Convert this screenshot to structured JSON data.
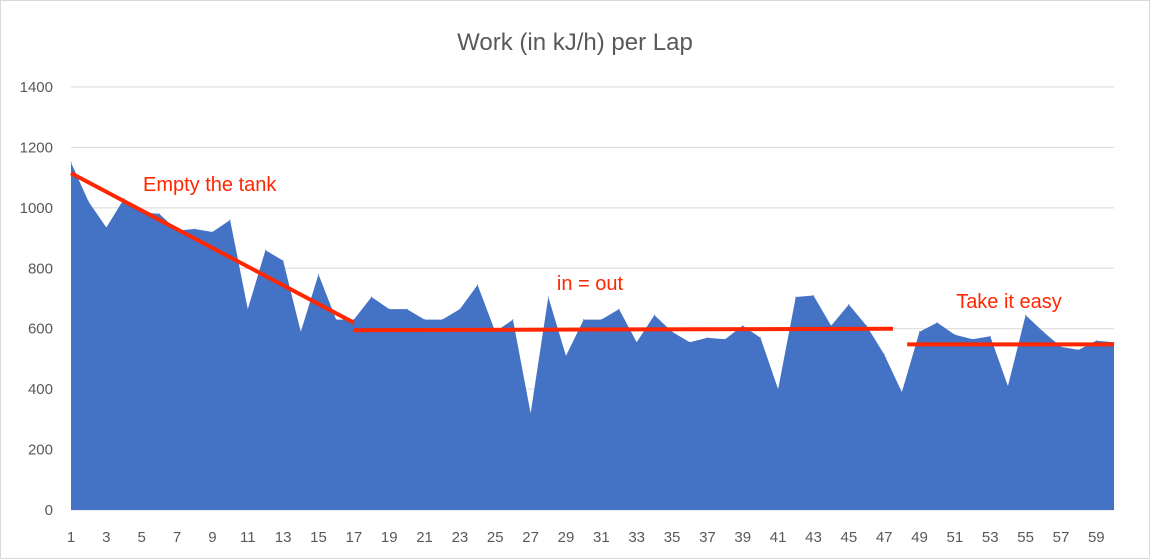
{
  "chart_data": {
    "type": "area",
    "title": "Work (in kJ/h) per Lap",
    "xlabel": "",
    "ylabel": "",
    "ylim": [
      0,
      1400
    ],
    "yticks": [
      0,
      200,
      400,
      600,
      800,
      1000,
      1200,
      1400
    ],
    "xlim": [
      1,
      60
    ],
    "xticks": [
      1,
      3,
      5,
      7,
      9,
      11,
      13,
      15,
      17,
      19,
      21,
      23,
      25,
      27,
      29,
      31,
      33,
      35,
      37,
      39,
      41,
      43,
      45,
      47,
      49,
      51,
      53,
      55,
      57,
      59
    ],
    "grid": true,
    "legend": "none",
    "series": [
      {
        "color": "#4472c4",
        "x": [
          1,
          2,
          3,
          4,
          5,
          6,
          7,
          8,
          9,
          10,
          11,
          12,
          13,
          14,
          15,
          16,
          17,
          18,
          19,
          20,
          21,
          22,
          23,
          24,
          25,
          26,
          27,
          28,
          29,
          30,
          31,
          32,
          33,
          34,
          35,
          36,
          37,
          38,
          39,
          40,
          41,
          42,
          43,
          44,
          45,
          46,
          47,
          48,
          49,
          50,
          51,
          52,
          53,
          54,
          55,
          56,
          57,
          58,
          59,
          60
        ],
        "values": [
          1150,
          1020,
          935,
          1030,
          985,
          980,
          925,
          930,
          920,
          960,
          665,
          860,
          825,
          590,
          780,
          630,
          630,
          705,
          665,
          665,
          630,
          630,
          665,
          745,
          590,
          630,
          320,
          705,
          510,
          630,
          630,
          665,
          555,
          645,
          590,
          555,
          570,
          565,
          610,
          570,
          400,
          705,
          710,
          610,
          680,
          610,
          515,
          390,
          590,
          620,
          580,
          565,
          575,
          410,
          645,
          590,
          540,
          530,
          560,
          555
        ]
      }
    ],
    "annotations": [
      {
        "text": "Empty the tank",
        "color": "#ff2600",
        "line_from": [
          1,
          1115
        ],
        "line_to": [
          17,
          620
        ]
      },
      {
        "text": "in = out",
        "color": "#ff2600",
        "line_from": [
          17,
          595
        ],
        "line_to": [
          47.5,
          600
        ]
      },
      {
        "text": "Take it easy",
        "color": "#ff2600",
        "line_from": [
          48.3,
          548
        ],
        "line_to": [
          60,
          548
        ]
      }
    ]
  }
}
